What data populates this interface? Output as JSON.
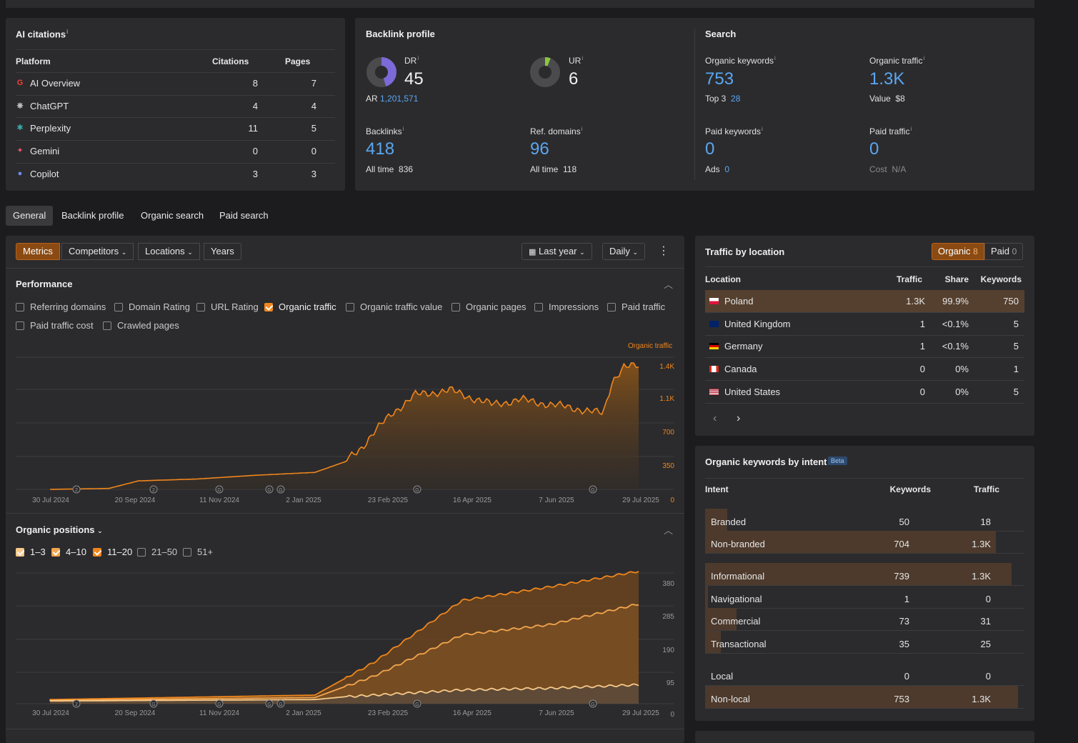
{
  "ai_citations": {
    "title": "AI citations",
    "info": "i",
    "headers": {
      "platform": "Platform",
      "citations": "Citations",
      "pages": "Pages"
    },
    "rows": [
      {
        "platform": "AI Overview",
        "citations": "8",
        "pages": "7",
        "icon": "google-icon"
      },
      {
        "platform": "ChatGPT",
        "citations": "4",
        "pages": "4",
        "icon": "chatgpt-icon"
      },
      {
        "platform": "Perplexity",
        "citations": "11",
        "pages": "5",
        "icon": "perplexity-icon"
      },
      {
        "platform": "Gemini",
        "citations": "0",
        "pages": "0",
        "icon": "gemini-icon"
      },
      {
        "platform": "Copilot",
        "citations": "3",
        "pages": "3",
        "icon": "copilot-icon"
      }
    ]
  },
  "backlink": {
    "title": "Backlink profile",
    "dr_label": "DR",
    "dr_value": "45",
    "dr_fraction": 0.45,
    "ar_label": "AR",
    "ar_value": "1,201,571",
    "ur_label": "UR",
    "ur_value": "6",
    "ur_fraction": 0.06,
    "backlinks_label": "Backlinks",
    "backlinks_value": "418",
    "backlinks_alltime_label": "All time",
    "backlinks_alltime": "836",
    "refdomains_label": "Ref. domains",
    "refdomains_value": "96",
    "refdomains_alltime_label": "All time",
    "refdomains_alltime": "118"
  },
  "search": {
    "title": "Search",
    "org_kw_label": "Organic keywords",
    "org_kw_value": "753",
    "top3_label": "Top 3",
    "top3_value": "28",
    "org_traffic_label": "Organic traffic",
    "org_traffic_value": "1.3K",
    "value_label": "Value",
    "value_value": "$8",
    "paid_kw_label": "Paid keywords",
    "paid_kw_value": "0",
    "ads_label": "Ads",
    "ads_value": "0",
    "paid_traffic_label": "Paid traffic",
    "paid_traffic_value": "0",
    "cost_label": "Cost",
    "cost_value": "N/A"
  },
  "tabs": [
    "General",
    "Backlink profile",
    "Organic search",
    "Paid search"
  ],
  "toolbar": {
    "metrics": "Metrics",
    "competitors": "Competitors",
    "locations": "Locations",
    "years": "Years",
    "range": "Last year",
    "interval": "Daily"
  },
  "performance": {
    "title": "Performance",
    "checkboxes": [
      {
        "label": "Referring domains",
        "checked": false
      },
      {
        "label": "Domain Rating",
        "checked": false
      },
      {
        "label": "URL Rating",
        "checked": false
      },
      {
        "label": "Organic traffic",
        "checked": true
      },
      {
        "label": "Organic traffic value",
        "checked": false
      },
      {
        "label": "Organic pages",
        "checked": false
      },
      {
        "label": "Impressions",
        "checked": false
      },
      {
        "label": "Paid traffic",
        "checked": false
      },
      {
        "label": "Paid traffic cost",
        "checked": false
      },
      {
        "label": "Crawled pages",
        "checked": false
      }
    ],
    "legend": "Organic traffic"
  },
  "positions": {
    "title": "Organic positions",
    "checkboxes": [
      {
        "label": "1–3",
        "checked": true
      },
      {
        "label": "4–10",
        "checked": true
      },
      {
        "label": "11–20",
        "checked": true
      },
      {
        "label": "21–50",
        "checked": false
      },
      {
        "label": "51+",
        "checked": false
      }
    ]
  },
  "chart_data": [
    {
      "type": "area",
      "title": "",
      "series": [
        {
          "name": "Organic traffic",
          "color": "#f0861c"
        }
      ],
      "x_ticks": [
        "30 Jul 2024",
        "20 Sep 2024",
        "11 Nov 2024",
        "2 Jan 2025",
        "23 Feb 2025",
        "16 Apr 2025",
        "7 Jun 2025",
        "29 Jul 2025"
      ],
      "y_ticks": [
        "0",
        "350",
        "700",
        "1.1K",
        "1.4K"
      ],
      "ylim": [
        0,
        1400
      ],
      "points": [
        [
          0,
          0
        ],
        [
          0.1,
          10
        ],
        [
          0.15,
          90
        ],
        [
          0.25,
          110
        ],
        [
          0.35,
          150
        ],
        [
          0.45,
          180
        ],
        [
          0.5,
          290
        ],
        [
          0.53,
          450
        ],
        [
          0.55,
          600
        ],
        [
          0.58,
          800
        ],
        [
          0.62,
          1000
        ],
        [
          0.68,
          1050
        ],
        [
          0.75,
          900
        ],
        [
          0.8,
          950
        ],
        [
          0.9,
          850
        ],
        [
          0.94,
          800
        ],
        [
          0.955,
          1150
        ],
        [
          0.975,
          1300
        ],
        [
          1,
          1300
        ]
      ],
      "annotations": [
        "2",
        "2",
        "G",
        "G",
        "G",
        "G",
        "G"
      ]
    },
    {
      "type": "area",
      "title": "",
      "series": [
        {
          "name": "1–3",
          "color": "#f7c98a",
          "values": [
            [
              0,
              8
            ],
            [
              0.45,
              12
            ],
            [
              0.5,
              20
            ],
            [
              0.6,
              30
            ],
            [
              0.7,
              40
            ],
            [
              0.85,
              45
            ],
            [
              1,
              55
            ]
          ]
        },
        {
          "name": "4–10",
          "color": "#f3a54e",
          "values": [
            [
              0,
              10
            ],
            [
              0.45,
              18
            ],
            [
              0.55,
              80
            ],
            [
              0.7,
              200
            ],
            [
              0.85,
              230
            ],
            [
              1,
              290
            ]
          ]
        },
        {
          "name": "11–20",
          "color": "#f0861c",
          "values": [
            [
              0,
              12
            ],
            [
              0.45,
              25
            ],
            [
              0.55,
              120
            ],
            [
              0.7,
              300
            ],
            [
              0.85,
              340
            ],
            [
              1,
              385
            ]
          ]
        }
      ],
      "x_ticks": [
        "30 Jul 2024",
        "20 Sep 2024",
        "11 Nov 2024",
        "2 Jan 2025",
        "23 Feb 2025",
        "16 Apr 2025",
        "7 Jun 2025",
        "29 Jul 2025"
      ],
      "y_ticks": [
        "0",
        "95",
        "190",
        "285",
        "380"
      ],
      "ylim": [
        0,
        380
      ]
    }
  ],
  "traffic_by_location": {
    "title": "Traffic by location",
    "organic_label": "Organic",
    "organic_count": "8",
    "paid_label": "Paid",
    "paid_count": "0",
    "headers": {
      "location": "Location",
      "traffic": "Traffic",
      "share": "Share",
      "keywords": "Keywords"
    },
    "rows": [
      {
        "location": "Poland",
        "traffic": "1.3K",
        "share": "99.9%",
        "keywords": "750",
        "flag": "pl"
      },
      {
        "location": "United Kingdom",
        "traffic": "1",
        "share": "<0.1%",
        "keywords": "5",
        "flag": "gb"
      },
      {
        "location": "Germany",
        "traffic": "1",
        "share": "<0.1%",
        "keywords": "5",
        "flag": "de"
      },
      {
        "location": "Canada",
        "traffic": "0",
        "share": "0%",
        "keywords": "1",
        "flag": "ca"
      },
      {
        "location": "United States",
        "traffic": "0",
        "share": "0%",
        "keywords": "5",
        "flag": "us"
      }
    ]
  },
  "intent": {
    "title": "Organic keywords by intent",
    "beta": "Beta",
    "headers": {
      "intent": "Intent",
      "keywords": "Keywords",
      "traffic": "Traffic"
    },
    "rows": [
      {
        "intent": "Branded",
        "keywords": "50",
        "traffic": "18",
        "share": 0.07
      },
      {
        "intent": "Non-branded",
        "keywords": "704",
        "traffic": "1.3K",
        "share": 0.93
      },
      {
        "intent": "Informational",
        "keywords": "739",
        "traffic": "1.3K",
        "share": 0.98
      },
      {
        "intent": "Navigational",
        "keywords": "1",
        "traffic": "0",
        "share": 0.01
      },
      {
        "intent": "Commercial",
        "keywords": "73",
        "traffic": "31",
        "share": 0.1
      },
      {
        "intent": "Transactional",
        "keywords": "35",
        "traffic": "25",
        "share": 0.05
      },
      {
        "intent": "Local",
        "keywords": "0",
        "traffic": "0",
        "share": 0
      },
      {
        "intent": "Non-local",
        "keywords": "753",
        "traffic": "1.3K",
        "share": 1
      }
    ]
  }
}
